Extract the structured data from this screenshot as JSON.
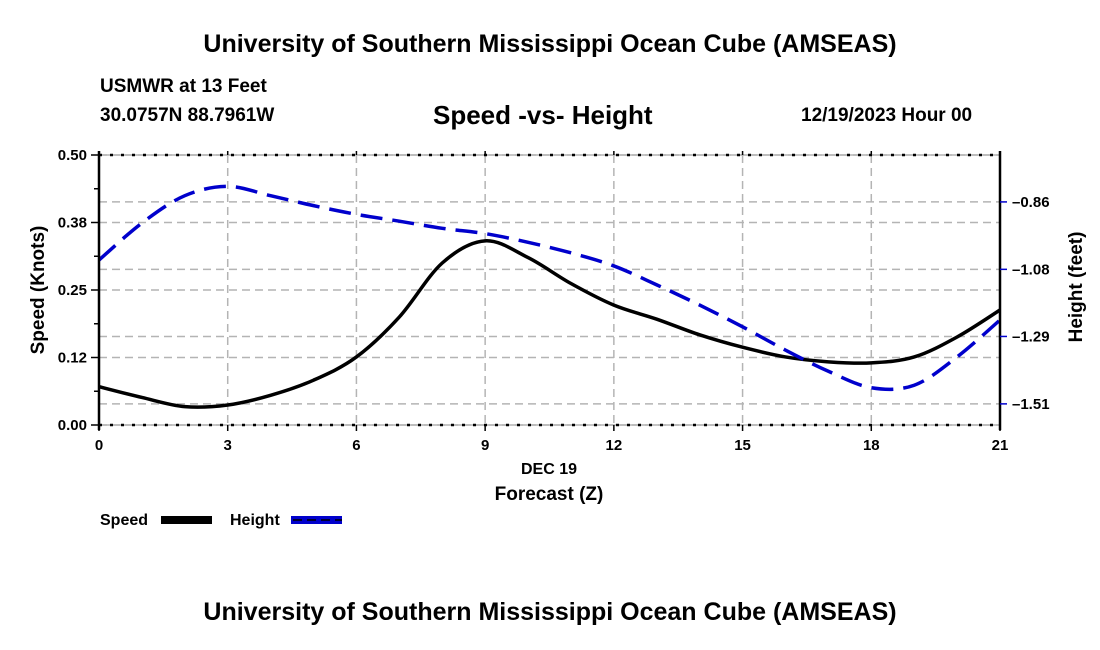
{
  "header": {
    "title": "University of Southern Mississippi Ocean Cube (AMSEAS)",
    "station": "USMWR at 13 Feet",
    "coordinates": "30.0757N  88.7961W",
    "subtitle": "Speed -vs- Height",
    "datetime": "12/19/2023 Hour 00"
  },
  "footer": {
    "title": "University of Southern Mississippi Ocean Cube (AMSEAS)"
  },
  "colors": {
    "speed": "#000000",
    "height": "#0000cc",
    "grid": "#b4b4b4"
  },
  "chart_data": {
    "type": "line",
    "title": "Speed -vs- Height",
    "xlabel": "Forecast (Z)",
    "xsublabel": "DEC 19",
    "ylabel": "Speed (Knots)",
    "y2label": "Height (feet)",
    "x": [
      0,
      1,
      2,
      3,
      4,
      5,
      6,
      7,
      8,
      9,
      10,
      11,
      12,
      13,
      14,
      15,
      16,
      17,
      18,
      19,
      20,
      21
    ],
    "xlim": [
      0,
      21
    ],
    "xticks": [
      0,
      3,
      6,
      9,
      12,
      15,
      18,
      21
    ],
    "xtick_labels": [
      "0",
      "3",
      "6",
      "9",
      "12",
      "15",
      "18",
      "21"
    ],
    "ylim": [
      0,
      0.5
    ],
    "yticks": [
      0,
      0.125,
      0.25,
      0.375,
      0.5
    ],
    "ytick_labels": [
      "0.00",
      "0.12",
      "0.25",
      "0.38",
      "0.50"
    ],
    "y2lim": [
      -1.578,
      -0.709
    ],
    "y2ticks": [
      -0.86,
      -1.077,
      -1.293,
      -1.51
    ],
    "y2tick_labels": [
      "-0.86",
      "-1.08",
      "-1.29",
      "-1.51"
    ],
    "grid": true,
    "legend": "bottom-left",
    "series": [
      {
        "name": "Speed",
        "axis": "left",
        "style": "solid",
        "values": [
          0.071,
          0.051,
          0.034,
          0.037,
          0.055,
          0.083,
          0.126,
          0.2,
          0.3,
          0.341,
          0.31,
          0.262,
          0.222,
          0.196,
          0.167,
          0.144,
          0.126,
          0.117,
          0.115,
          0.126,
          0.163,
          0.213
        ]
      },
      {
        "name": "Height",
        "axis": "right",
        "style": "dashed",
        "values": [
          -1.047,
          -0.928,
          -0.84,
          -0.81,
          -0.84,
          -0.872,
          -0.9,
          -0.922,
          -0.945,
          -0.962,
          -0.99,
          -1.024,
          -1.066,
          -1.127,
          -1.192,
          -1.262,
          -1.337,
          -1.405,
          -1.458,
          -1.45,
          -1.359,
          -1.24
        ]
      }
    ]
  }
}
